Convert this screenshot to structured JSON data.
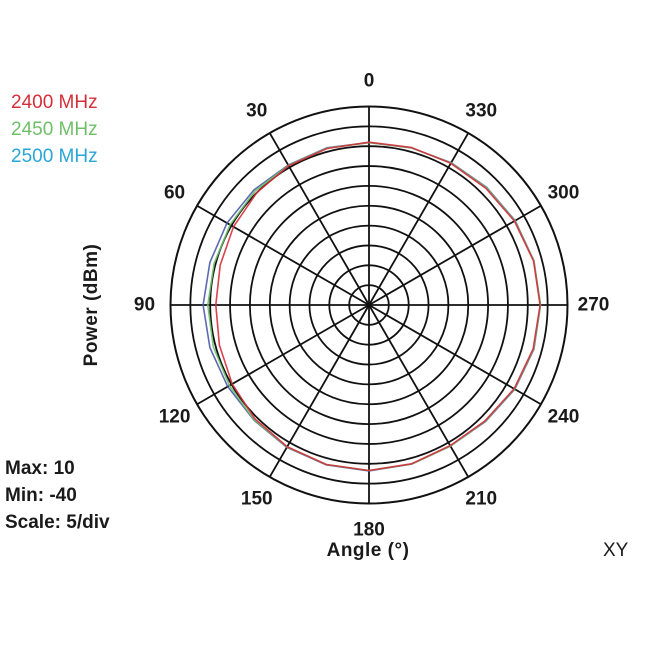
{
  "chart_data": {
    "type": "polar-line",
    "title": "",
    "xlabel": "Angle  (°)",
    "ylabel": "Power  (dBm)",
    "mode_label": "XY",
    "rlim": [
      -40,
      10
    ],
    "r_scale_per_div": 5,
    "angle_direction": "counterclockwise",
    "zero_location": "top",
    "angle_ticks": [
      0,
      30,
      60,
      90,
      120,
      150,
      180,
      210,
      240,
      270,
      300,
      330
    ],
    "grid": true,
    "legend_position": "upper-left",
    "angles": [
      0,
      15,
      30,
      45,
      60,
      75,
      90,
      105,
      120,
      135,
      150,
      165,
      180,
      195,
      210,
      225,
      240,
      255,
      270,
      285,
      300,
      315,
      330,
      345
    ],
    "series": [
      {
        "name": "2400 MHz",
        "color": "#d4303a",
        "values": [
          1.0,
          0.8,
          0.5,
          0.0,
          -0.6,
          -1.2,
          -1.4,
          -1.0,
          -0.2,
          0.6,
          1.2,
          1.6,
          1.7,
          1.4,
          0.9,
          1.3,
          2.2,
          2.8,
          3.1,
          2.9,
          2.3,
          1.6,
          1.2,
          1.1
        ]
      },
      {
        "name": "2450 MHz",
        "color": "#6fbf6a",
        "values": [
          0.9,
          0.9,
          0.6,
          0.6,
          0.4,
          0.4,
          0.6,
          0.6,
          0.6,
          0.9,
          1.3,
          1.6,
          1.7,
          1.5,
          1.0,
          1.4,
          2.3,
          2.9,
          3.2,
          3.0,
          2.4,
          1.8,
          1.3,
          1.0
        ]
      },
      {
        "name": "2500 MHz",
        "color": "#2aa5d8",
        "values": [
          0.9,
          1.0,
          0.7,
          1.0,
          1.3,
          1.5,
          1.8,
          1.5,
          1.1,
          1.0,
          1.4,
          1.7,
          1.8,
          1.5,
          1.0,
          1.5,
          2.4,
          3.0,
          3.2,
          3.0,
          2.5,
          1.9,
          1.4,
          1.0
        ]
      }
    ],
    "stats": {
      "max": "Max: 10",
      "min": "Min: -40",
      "scale": "Scale: 5/div"
    }
  },
  "legend": [
    {
      "label": "2400 MHz",
      "color": "#d4303a"
    },
    {
      "label": "2450 MHz",
      "color": "#6fbf6a"
    },
    {
      "label": "2500 MHz",
      "color": "#2aa5d8"
    }
  ],
  "labels": {
    "max": "Max: 10",
    "min": "Min: -40",
    "scale": "Scale: 5/div",
    "xlabel": "Angle  (°)",
    "ylabel": "Power  (dBm)",
    "mode": "XY"
  }
}
